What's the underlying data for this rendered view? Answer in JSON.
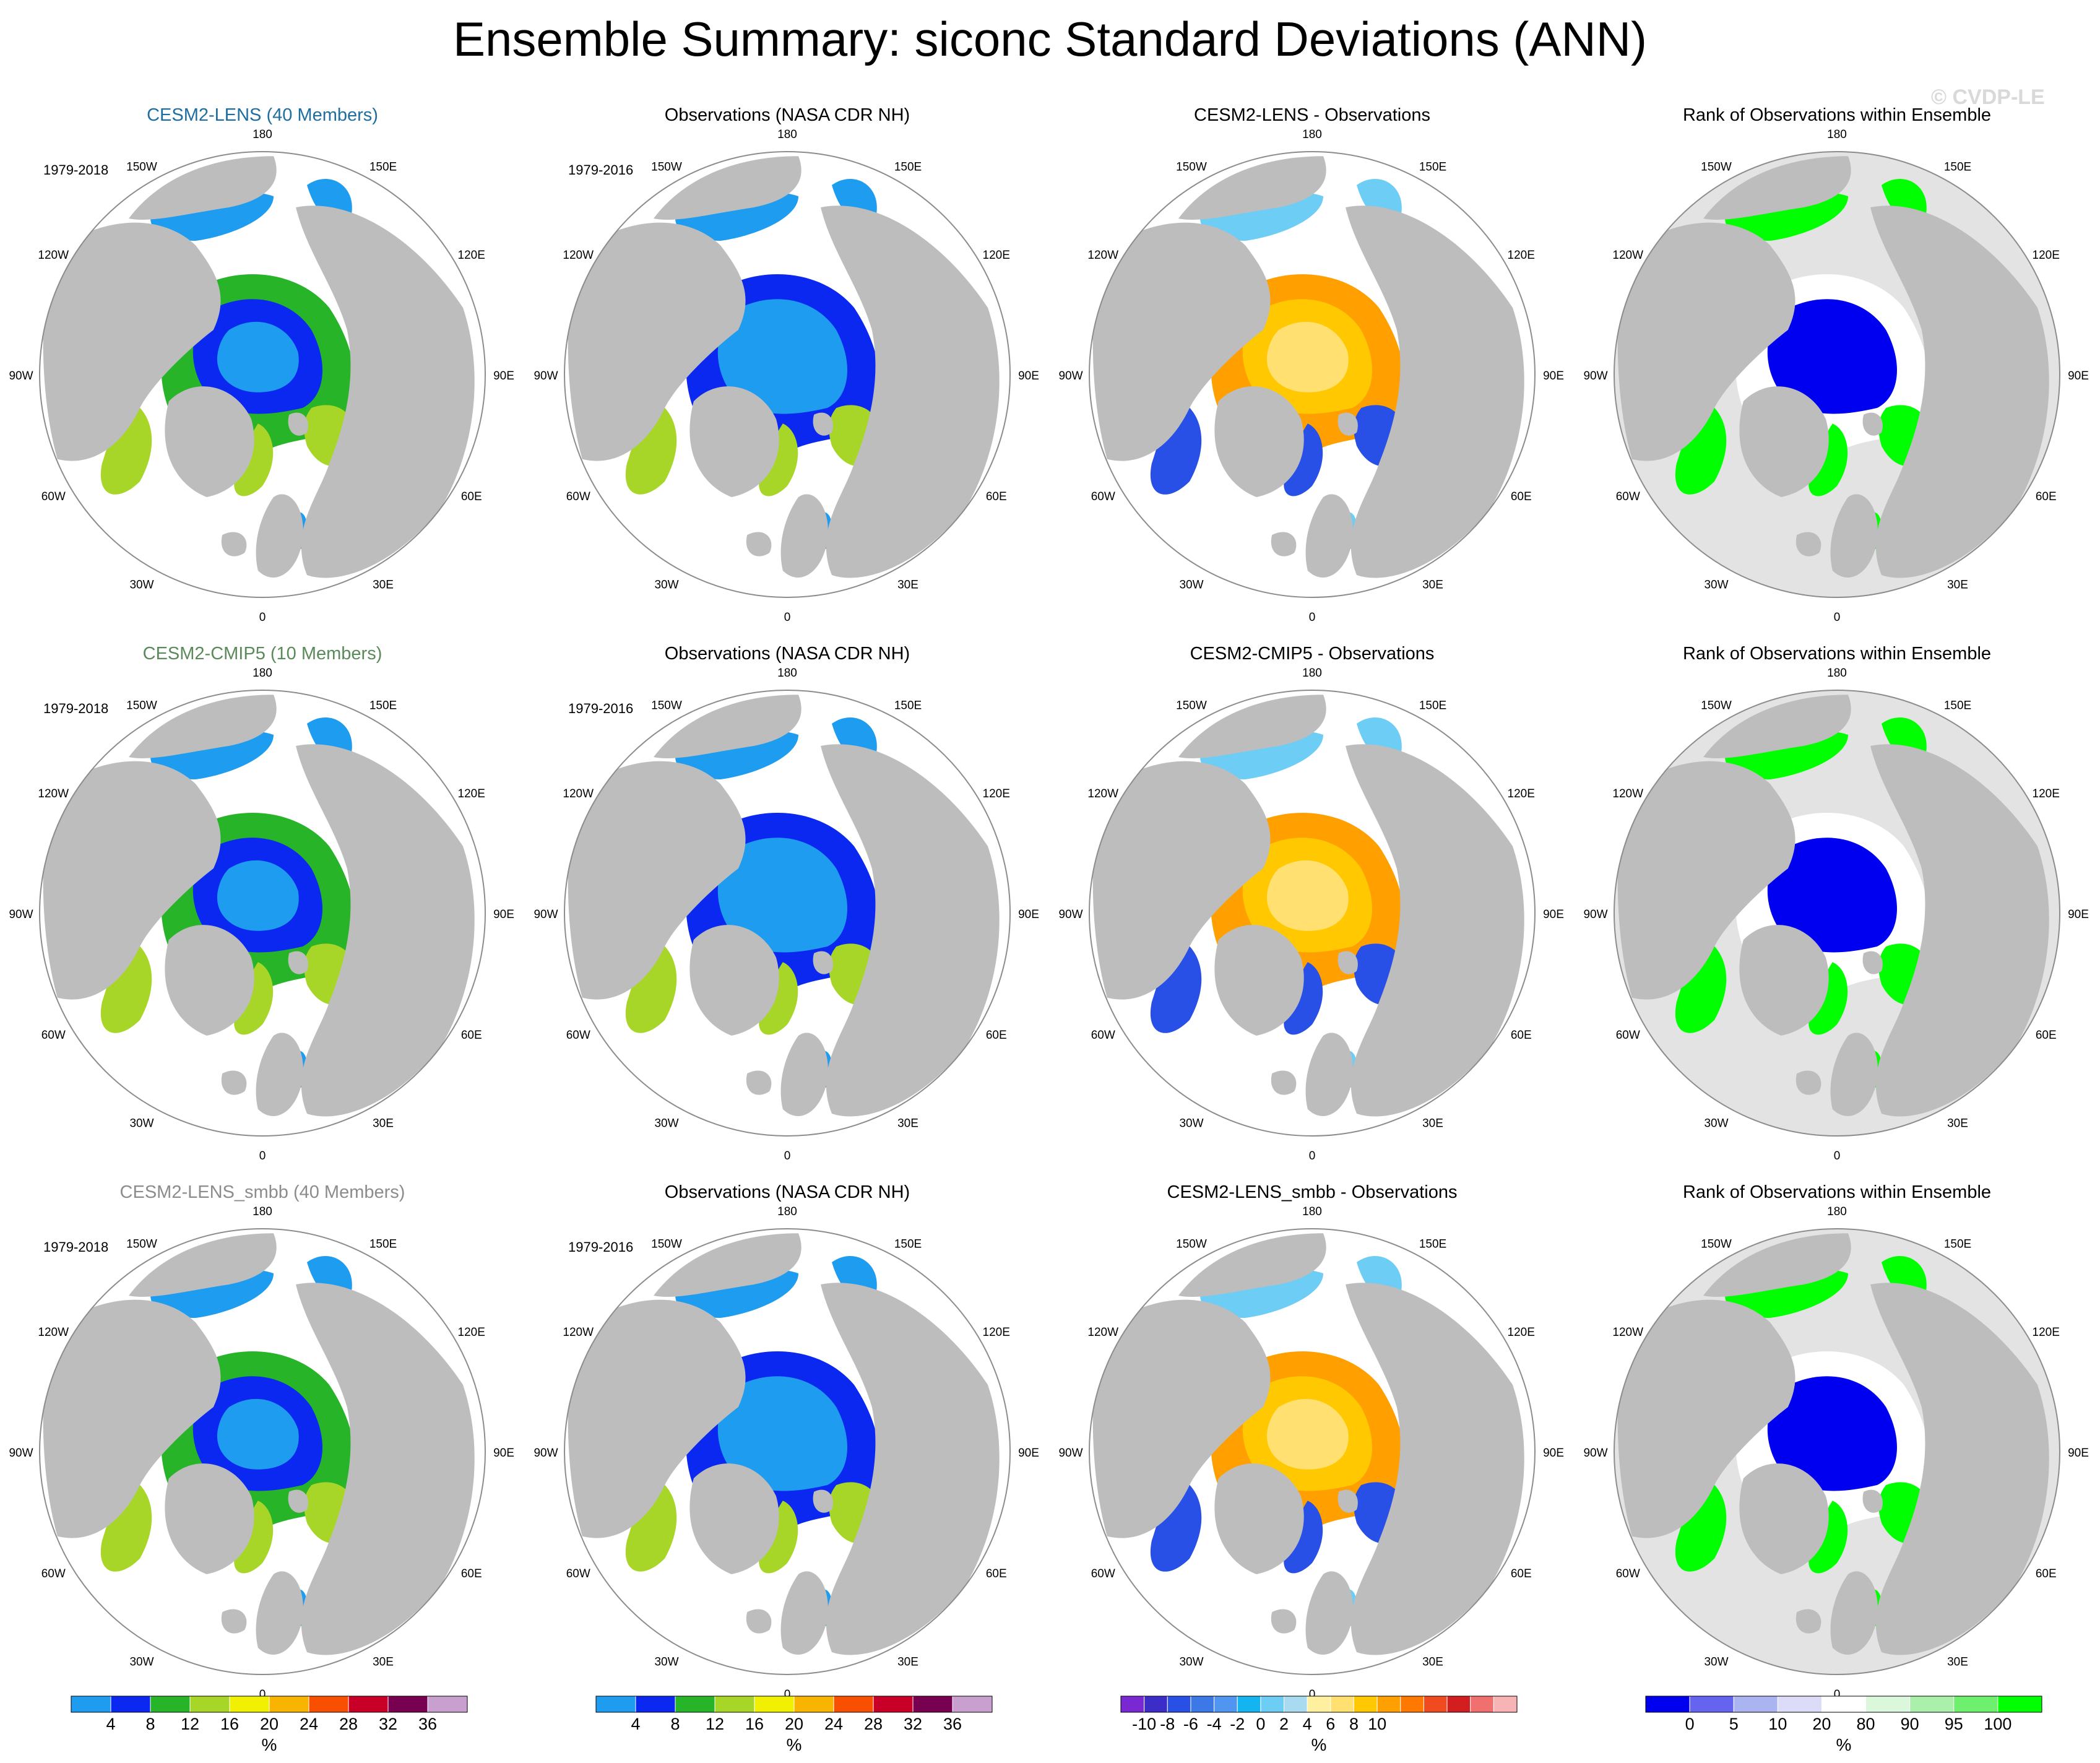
{
  "title": "Ensemble Summary: siconc Standard Deviations (ANN)",
  "watermark": "© CVDP-LE",
  "colors": {
    "land": "#bdbdbd",
    "circle_edge": "#8c8c8c",
    "ocean": "#ffffff",
    "rank_ocean": "#e3e3e3",
    "cesm2_lens_title": "#1e6ea0",
    "cmip5_title": "#5a8a5a",
    "smbb_title": "#8c8c8c"
  },
  "rows": [
    {
      "panels": [
        {
          "title": "CESM2-LENS (40 Members)",
          "title_color": "cesm2_lens_title",
          "period": "1979-2018",
          "kind": "model"
        },
        {
          "title": "Observations (NASA CDR NH)",
          "period": "1979-2016",
          "kind": "obs"
        },
        {
          "title": "CESM2-LENS - Observations",
          "period": "",
          "kind": "diff"
        },
        {
          "title": "Rank of Observations within Ensemble",
          "period": "",
          "kind": "rank"
        }
      ]
    },
    {
      "panels": [
        {
          "title": "CESM2-CMIP5 (10 Members)",
          "title_color": "cmip5_title",
          "period": "1979-2018",
          "kind": "model"
        },
        {
          "title": "Observations (NASA CDR NH)",
          "period": "1979-2016",
          "kind": "obs"
        },
        {
          "title": "CESM2-CMIP5 - Observations",
          "period": "",
          "kind": "diff"
        },
        {
          "title": "Rank of Observations within Ensemble",
          "period": "",
          "kind": "rank"
        }
      ]
    },
    {
      "panels": [
        {
          "title": "CESM2-LENS_smbb (40 Members)",
          "title_color": "smbb_title",
          "period": "1979-2018",
          "kind": "model"
        },
        {
          "title": "Observations (NASA CDR NH)",
          "period": "1979-2016",
          "kind": "obs"
        },
        {
          "title": "CESM2-LENS_smbb - Observations",
          "period": "",
          "kind": "diff"
        },
        {
          "title": "Rank of Observations within Ensemble",
          "period": "",
          "kind": "rank"
        }
      ]
    }
  ],
  "lon_labels": [
    "180",
    "150E",
    "120E",
    "90E",
    "60E",
    "30E",
    "0",
    "30W",
    "60W",
    "90W",
    "120W",
    "150W"
  ],
  "chart_data": [
    {
      "type": "heatmap",
      "description_label": "sea-ice concentration standard deviation maps (polar stereographic, NH)",
      "colorbar": {
        "name": "stddev",
        "unit": "%",
        "colors": [
          "#1e9cf0",
          "#0a28f0",
          "#28b428",
          "#a8d628",
          "#f0f000",
          "#f8b400",
          "#f85000",
          "#c80028",
          "#780050",
          "#c8a0d0"
        ],
        "tick_labels": [
          "4",
          "8",
          "12",
          "16",
          "20",
          "24",
          "28",
          "32",
          "36"
        ]
      }
    },
    {
      "type": "heatmap",
      "description_label": "model minus observations",
      "colorbar": {
        "name": "diff",
        "unit": "%",
        "colors": [
          "#7a28d2",
          "#3c2cc8",
          "#2850e6",
          "#3c78e6",
          "#5096f0",
          "#14b4f0",
          "#6ecdf5",
          "#a8daf0",
          "#fff0a0",
          "#ffe070",
          "#ffc800",
          "#ffa000",
          "#ff7800",
          "#f04b1e",
          "#d21e1e",
          "#f07070",
          "#f8b4b4"
        ],
        "tick_labels": [
          "-10",
          "-8",
          "-6",
          "-4",
          "-2",
          "0",
          "2",
          "4",
          "6",
          "8",
          "10"
        ]
      }
    },
    {
      "type": "heatmap",
      "description_label": "rank of observations within ensemble",
      "colorbar": {
        "name": "rank",
        "unit": "%",
        "colors": [
          "#0000f0",
          "#6464f0",
          "#aab4f0",
          "#dcdcf8",
          "#ffffff",
          "#dcf8dc",
          "#aaf0aa",
          "#6ef06e",
          "#00ff00"
        ],
        "tick_labels": [
          "0",
          "5",
          "10",
          "20",
          "80",
          "90",
          "95",
          "100"
        ]
      }
    }
  ]
}
